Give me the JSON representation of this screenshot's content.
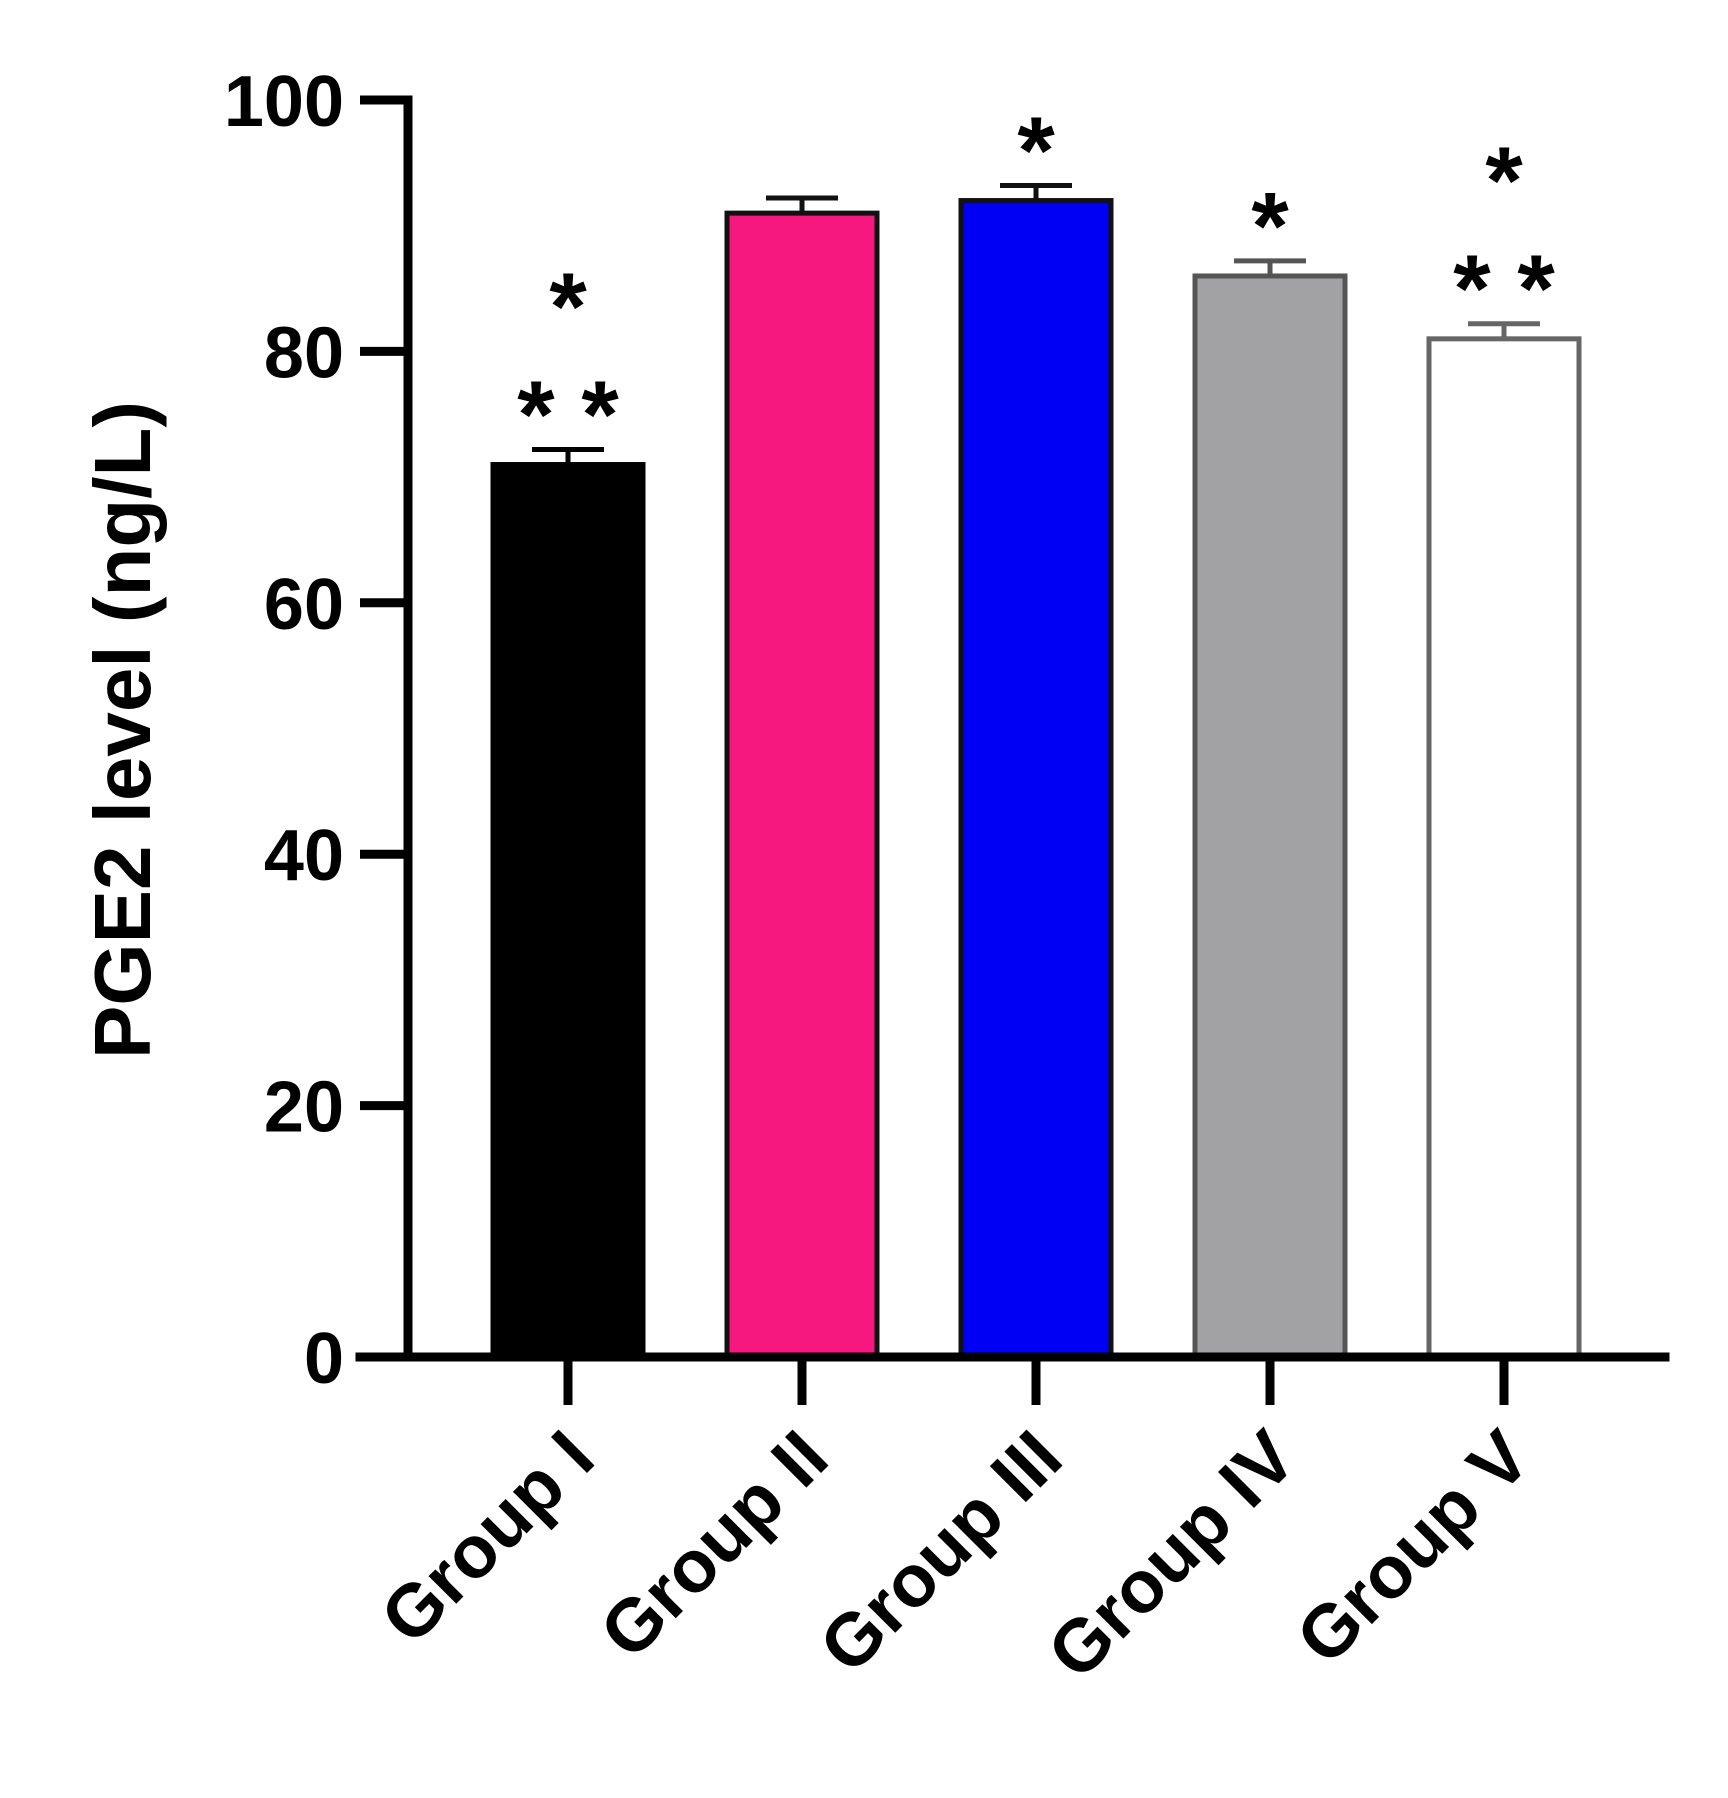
{
  "chart_data": {
    "type": "bar",
    "title": "",
    "xlabel": "",
    "ylabel": "PGE2 level (ng/L)",
    "ylim": [
      0,
      100
    ],
    "yticks": [
      0,
      20,
      40,
      60,
      80,
      100
    ],
    "categories": [
      "Group I",
      "Group II",
      "Group III",
      "Group IV",
      "Group V"
    ],
    "values": [
      71,
      91,
      92,
      86,
      81
    ],
    "errors": [
      1.2,
      1.2,
      1.2,
      1.2,
      1.2
    ],
    "colors": {
      "fill": [
        "#000000",
        "#f7187f",
        "#0000f5",
        "#a2a2a5",
        "#ffffff"
      ],
      "stroke": [
        "#000000",
        "#111111",
        "#111111",
        "#555555",
        "#666666"
      ]
    },
    "annotations": [
      {
        "category": "Group I",
        "rows": [
          "*",
          "* *"
        ]
      },
      {
        "category": "Group II",
        "rows": []
      },
      {
        "category": "Group III",
        "rows": [
          "*"
        ]
      },
      {
        "category": "Group IV",
        "rows": [
          "*"
        ]
      },
      {
        "category": "Group V",
        "rows": [
          "*",
          "* *"
        ]
      }
    ]
  }
}
